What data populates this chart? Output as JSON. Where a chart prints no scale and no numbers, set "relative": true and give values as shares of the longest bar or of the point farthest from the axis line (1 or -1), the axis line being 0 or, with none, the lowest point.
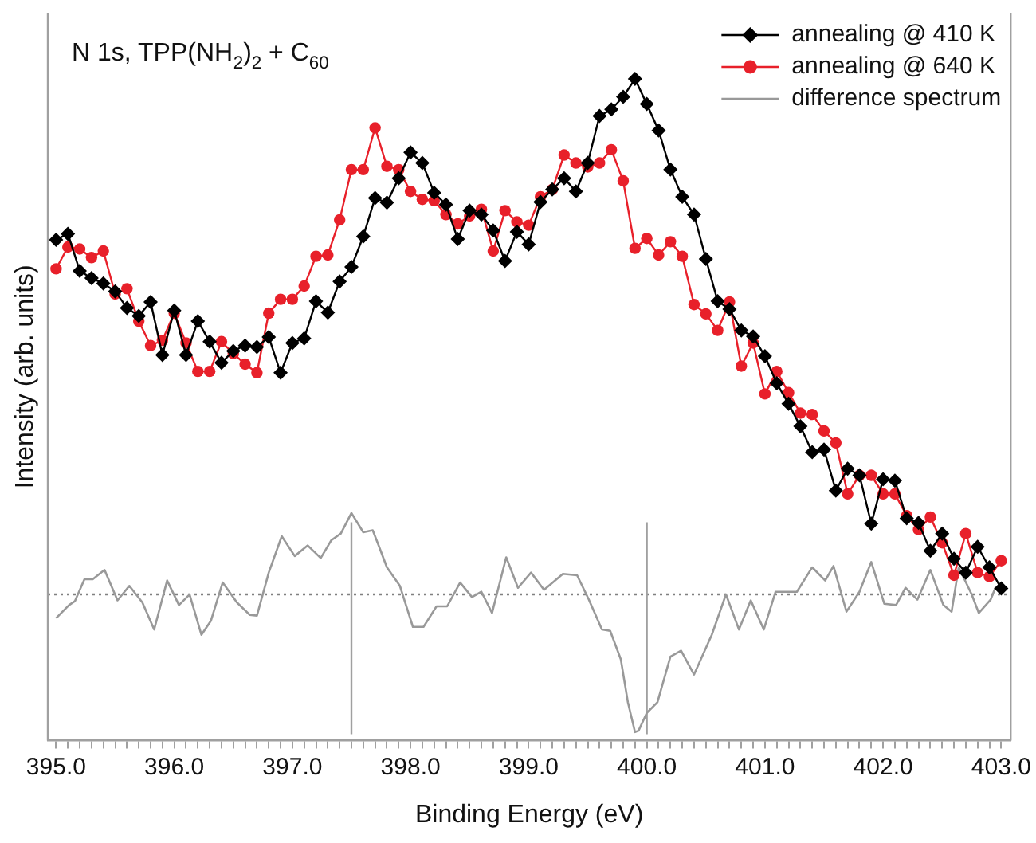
{
  "chart_data": {
    "type": "line",
    "title": "N 1s, TPP(NH$_{2}$)$_{2}$ + C$_{60}$",
    "xlabel": "Binding Energy (eV)",
    "ylabel": "Intensity (arb. units)",
    "relative": true,
    "x": [
      395.0,
      395.1,
      395.2,
      395.3,
      395.4,
      395.5,
      395.6,
      395.7,
      395.8,
      395.9,
      396.0,
      396.1,
      396.2,
      396.3,
      396.4,
      396.5,
      396.6,
      396.7,
      396.8,
      396.9,
      397.0,
      397.1,
      397.2,
      397.3,
      397.4,
      397.5,
      397.6,
      397.7,
      397.8,
      397.9,
      398.0,
      398.1,
      398.2,
      398.3,
      398.4,
      398.5,
      398.6,
      398.7,
      398.8,
      398.9,
      399.0,
      399.1,
      399.2,
      399.3,
      399.4,
      399.5,
      399.6,
      399.7,
      399.8,
      399.9,
      400.0,
      400.1,
      400.2,
      400.3,
      400.4,
      400.5,
      400.6,
      400.7,
      400.8,
      400.9,
      401.0,
      401.1,
      401.2,
      401.3,
      401.4,
      401.5,
      401.6,
      401.7,
      401.8,
      401.9,
      402.0,
      402.1,
      402.2,
      402.3,
      402.4,
      402.5,
      402.6,
      402.7,
      402.8,
      402.9,
      403.0
    ],
    "series": [
      {
        "name": "annealing @ 410 K",
        "color": "#000000",
        "marker": "diamond",
        "values": [
          0.757,
          0.766,
          0.71,
          0.699,
          0.691,
          0.679,
          0.654,
          0.642,
          0.663,
          0.583,
          0.65,
          0.583,
          0.634,
          0.603,
          0.571,
          0.589,
          0.597,
          0.595,
          0.61,
          0.556,
          0.601,
          0.608,
          0.664,
          0.647,
          0.694,
          0.716,
          0.762,
          0.82,
          0.813,
          0.85,
          0.889,
          0.873,
          0.828,
          0.81,
          0.758,
          0.801,
          0.795,
          0.771,
          0.725,
          0.769,
          0.75,
          0.814,
          0.833,
          0.85,
          0.83,
          0.873,
          0.944,
          0.954,
          0.973,
          1.0,
          0.962,
          0.922,
          0.863,
          0.822,
          0.795,
          0.728,
          0.664,
          0.652,
          0.62,
          0.611,
          0.581,
          0.54,
          0.509,
          0.475,
          0.436,
          0.44,
          0.378,
          0.411,
          0.401,
          0.328,
          0.395,
          0.393,
          0.336,
          0.329,
          0.287,
          0.313,
          0.275,
          0.254,
          0.293,
          0.262,
          0.23
        ]
      },
      {
        "name": "annealing @ 640 K",
        "color": "#e8202a",
        "marker": "circle",
        "values": [
          0.713,
          0.746,
          0.743,
          0.73,
          0.74,
          0.675,
          0.683,
          0.634,
          0.597,
          0.605,
          0.646,
          0.601,
          0.558,
          0.558,
          0.603,
          0.585,
          0.569,
          0.556,
          0.646,
          0.667,
          0.667,
          0.687,
          0.732,
          0.734,
          0.787,
          0.863,
          0.863,
          0.926,
          0.868,
          0.863,
          0.83,
          0.818,
          0.816,
          0.795,
          0.781,
          0.793,
          0.803,
          0.74,
          0.801,
          0.784,
          0.779,
          0.822,
          0.833,
          0.885,
          0.873,
          0.867,
          0.873,
          0.893,
          0.846,
          0.744,
          0.759,
          0.734,
          0.754,
          0.732,
          0.659,
          0.645,
          0.62,
          0.663,
          0.566,
          0.601,
          0.524,
          0.558,
          0.526,
          0.495,
          0.493,
          0.468,
          0.45,
          0.373,
          0.401,
          0.401,
          0.373,
          0.373,
          0.34,
          0.319,
          0.338,
          0.299,
          0.25,
          0.313,
          0.254,
          0.248,
          0.272
        ]
      },
      {
        "name": "difference spectrum",
        "color": "#999999",
        "marker": "none",
        "x": [
          395.0,
          395.11,
          395.16,
          395.24,
          395.31,
          395.41,
          395.52,
          395.62,
          395.73,
          395.83,
          395.94,
          396.04,
          396.13,
          396.23,
          396.31,
          396.41,
          396.53,
          396.64,
          396.7,
          396.8,
          396.91,
          397.02,
          397.13,
          397.24,
          397.33,
          397.41,
          397.5,
          397.6,
          397.68,
          397.73,
          397.8,
          397.91,
          398.02,
          398.11,
          398.22,
          398.31,
          398.42,
          398.52,
          398.6,
          398.69,
          398.81,
          398.91,
          399.02,
          399.13,
          399.29,
          399.41,
          399.51,
          399.62,
          399.69,
          399.78,
          399.84,
          399.9,
          399.93,
          400.0,
          400.09,
          400.2,
          400.29,
          400.4,
          400.55,
          400.67,
          400.78,
          400.88,
          400.99,
          401.09,
          401.27,
          401.4,
          401.51,
          401.58,
          401.69,
          401.8,
          401.9,
          402.01,
          402.11,
          402.19,
          402.29,
          402.4,
          402.51,
          402.58,
          402.64,
          402.75,
          402.81,
          402.91,
          402.95
        ],
        "values": [
          0.185,
          0.205,
          0.211,
          0.244,
          0.244,
          0.258,
          0.212,
          0.234,
          0.209,
          0.168,
          0.242,
          0.205,
          0.221,
          0.16,
          0.181,
          0.239,
          0.209,
          0.19,
          0.189,
          0.254,
          0.309,
          0.279,
          0.295,
          0.276,
          0.303,
          0.313,
          0.344,
          0.315,
          0.318,
          0.295,
          0.262,
          0.234,
          0.172,
          0.172,
          0.203,
          0.203,
          0.239,
          0.217,
          0.225,
          0.193,
          0.277,
          0.231,
          0.254,
          0.228,
          0.252,
          0.25,
          0.213,
          0.168,
          0.166,
          0.123,
          0.058,
          0.013,
          0.015,
          0.042,
          0.058,
          0.127,
          0.136,
          0.1,
          0.16,
          0.221,
          0.168,
          0.212,
          0.168,
          0.225,
          0.225,
          0.262,
          0.242,
          0.264,
          0.195,
          0.225,
          0.27,
          0.207,
          0.205,
          0.231,
          0.213,
          0.258,
          0.205,
          0.195,
          0.262,
          0.221,
          0.193,
          0.213,
          0.231
        ]
      }
    ],
    "xlim": [
      394.93,
      403.08
    ],
    "xticks": [
      {
        "value": 395,
        "label": "395.0"
      },
      {
        "value": 395.1,
        "label": null
      },
      {
        "value": 395.2,
        "label": null
      },
      {
        "value": 395.3,
        "label": null
      },
      {
        "value": 395.4,
        "label": null
      },
      {
        "value": 395.5,
        "label": null
      },
      {
        "value": 395.6,
        "label": null
      },
      {
        "value": 395.7,
        "label": null
      },
      {
        "value": 395.8,
        "label": null
      },
      {
        "value": 395.9,
        "label": null
      },
      {
        "value": 396,
        "label": "396.0"
      },
      {
        "value": 396.1,
        "label": null
      },
      {
        "value": 396.2,
        "label": null
      },
      {
        "value": 396.3,
        "label": null
      },
      {
        "value": 396.4,
        "label": null
      },
      {
        "value": 396.5,
        "label": null
      },
      {
        "value": 396.6,
        "label": null
      },
      {
        "value": 396.7,
        "label": null
      },
      {
        "value": 396.8,
        "label": null
      },
      {
        "value": 396.9,
        "label": null
      },
      {
        "value": 397,
        "label": "397.0"
      },
      {
        "value": 397.1,
        "label": null
      },
      {
        "value": 397.2,
        "label": null
      },
      {
        "value": 397.3,
        "label": null
      },
      {
        "value": 397.4,
        "label": null
      },
      {
        "value": 397.5,
        "label": null
      },
      {
        "value": 397.6,
        "label": null
      },
      {
        "value": 397.7,
        "label": null
      },
      {
        "value": 397.8,
        "label": null
      },
      {
        "value": 397.9,
        "label": null
      },
      {
        "value": 398,
        "label": "398.0"
      },
      {
        "value": 398.1,
        "label": null
      },
      {
        "value": 398.2,
        "label": null
      },
      {
        "value": 398.3,
        "label": null
      },
      {
        "value": 398.4,
        "label": null
      },
      {
        "value": 398.5,
        "label": null
      },
      {
        "value": 398.6,
        "label": null
      },
      {
        "value": 398.7,
        "label": null
      },
      {
        "value": 398.8,
        "label": null
      },
      {
        "value": 398.9,
        "label": null
      },
      {
        "value": 399,
        "label": "399.0"
      },
      {
        "value": 399.1,
        "label": null
      },
      {
        "value": 399.2,
        "label": null
      },
      {
        "value": 399.3,
        "label": null
      },
      {
        "value": 399.4,
        "label": null
      },
      {
        "value": 399.5,
        "label": null
      },
      {
        "value": 399.6,
        "label": null
      },
      {
        "value": 399.7,
        "label": null
      },
      {
        "value": 399.8,
        "label": null
      },
      {
        "value": 399.9,
        "label": null
      },
      {
        "value": 400,
        "label": "400.0"
      },
      {
        "value": 400.1,
        "label": null
      },
      {
        "value": 400.2,
        "label": null
      },
      {
        "value": 400.3,
        "label": null
      },
      {
        "value": 400.4,
        "label": null
      },
      {
        "value": 400.5,
        "label": null
      },
      {
        "value": 400.6,
        "label": null
      },
      {
        "value": 400.7,
        "label": null
      },
      {
        "value": 400.8,
        "label": null
      },
      {
        "value": 400.9,
        "label": null
      },
      {
        "value": 401,
        "label": "401.0"
      },
      {
        "value": 401.1,
        "label": null
      },
      {
        "value": 401.2,
        "label": null
      },
      {
        "value": 401.3,
        "label": null
      },
      {
        "value": 401.4,
        "label": null
      },
      {
        "value": 401.5,
        "label": null
      },
      {
        "value": 401.6,
        "label": null
      },
      {
        "value": 401.7,
        "label": null
      },
      {
        "value": 401.8,
        "label": null
      },
      {
        "value": 401.9,
        "label": null
      },
      {
        "value": 402,
        "label": "402.0"
      },
      {
        "value": 402.1,
        "label": null
      },
      {
        "value": 402.2,
        "label": null
      },
      {
        "value": 402.3,
        "label": null
      },
      {
        "value": 402.4,
        "label": null
      },
      {
        "value": 402.5,
        "label": null
      },
      {
        "value": 402.6,
        "label": null
      },
      {
        "value": 402.7,
        "label": null
      },
      {
        "value": 402.8,
        "label": null
      },
      {
        "value": 402.9,
        "label": null
      },
      {
        "value": 403,
        "label": "403.0"
      }
    ],
    "tick_labels": "x",
    "ref_lines": [
      {
        "axis": "y",
        "value": 0.221,
        "color": "#808080",
        "line_style": "dotted"
      },
      {
        "axis": "x",
        "value": 397.5,
        "color": "#a0a0a0",
        "line_style": "solid"
      },
      {
        "axis": "x",
        "value": 400.0,
        "color": "#a0a0a0",
        "line_style": "solid"
      }
    ],
    "grid": false,
    "legend": "top right",
    "line_style": "solid"
  }
}
